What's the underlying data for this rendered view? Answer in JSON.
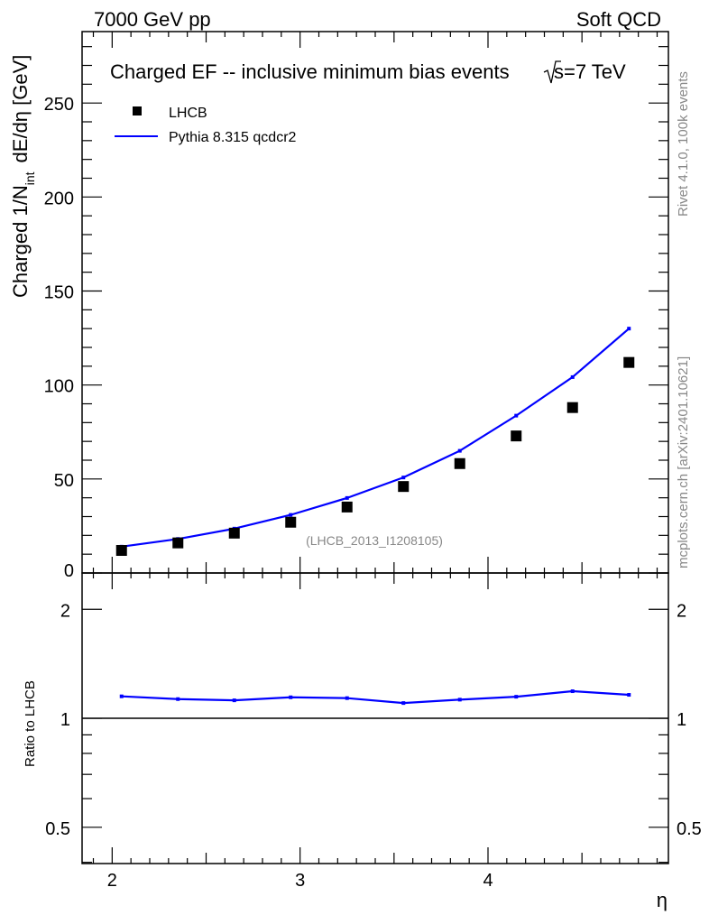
{
  "header": {
    "left": "7000 GeV pp",
    "right": "Soft QCD"
  },
  "side_labels": {
    "rivet": "Rivet 4.1.0,  100k events",
    "mcplots": "mcplots.cern.ch [arXiv:2401.10621]"
  },
  "colors": {
    "data": "#000000",
    "mc": "#0000ff",
    "side_text": "#888888"
  },
  "chart_data": [
    {
      "type": "scatter",
      "title": "Charged EF -- inclusive minimum bias events",
      "title_energy": "s=7 TeV",
      "analysis_label": "(LHCB_2013_I1208105)",
      "ylabel_main": "Charged 1/N",
      "ylabel_sub": "int",
      "ylabel_tail": "dE/dη [GeV]",
      "xlim": [
        1.84,
        4.96
      ],
      "ylim": [
        0,
        288
      ],
      "yticks": [
        0,
        50,
        100,
        150,
        200,
        250
      ],
      "ytick_labels": [
        "0",
        "50",
        "100",
        "150",
        "200",
        "250"
      ],
      "legend_position": "top-left",
      "x": [
        2.05,
        2.35,
        2.65,
        2.95,
        3.25,
        3.55,
        3.85,
        4.15,
        4.45,
        4.75
      ],
      "series": [
        {
          "name": "LHCB",
          "style": "markers",
          "values": [
            12,
            16,
            21.2,
            27,
            35.1,
            46,
            58.2,
            72.9,
            88,
            112
          ]
        },
        {
          "name": "Pythia 8.315 qcdcr2",
          "style": "line",
          "values": [
            14,
            18.1,
            23.6,
            30.9,
            39.9,
            50.8,
            65,
            83.7,
            104.2,
            130
          ]
        }
      ]
    },
    {
      "type": "line",
      "ylabel": "Ratio to LHCB",
      "xlabel": "η",
      "yscale": "log",
      "ylim": [
        0.397,
        2.52
      ],
      "yticks": [
        0.5,
        1,
        2
      ],
      "ytick_labels": [
        "0.5",
        "1",
        "2"
      ],
      "xticks": [
        2,
        3,
        4
      ],
      "xtick_labels": [
        "2",
        "3",
        "4"
      ],
      "x": [
        2.05,
        2.35,
        2.65,
        2.95,
        3.25,
        3.55,
        3.85,
        4.15,
        4.45,
        4.75
      ],
      "series": [
        {
          "name": "Pythia 8.315 qcdcr2 / LHCB",
          "values": [
            1.15,
            1.13,
            1.121,
            1.143,
            1.137,
            1.102,
            1.126,
            1.147,
            1.188,
            1.161
          ]
        }
      ]
    }
  ]
}
